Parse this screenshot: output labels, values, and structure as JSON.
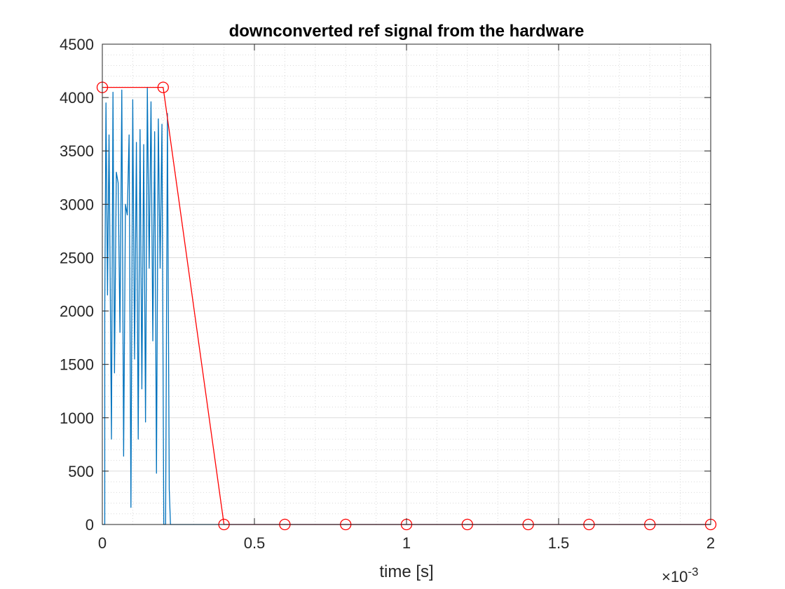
{
  "chart_data": {
    "type": "line",
    "title": "downconverted ref signal from the hardware",
    "xlabel": "time [s]",
    "ylabel": "",
    "xlim": [
      0,
      0.002
    ],
    "ylim": [
      0,
      4500
    ],
    "x_exponent_label": "×10",
    "x_exponent_power": "-3",
    "xticks": [
      0,
      0.0005,
      0.001,
      0.0015,
      0.002
    ],
    "xtick_labels": [
      "0",
      "0.5",
      "1",
      "1.5",
      "2"
    ],
    "yticks": [
      0,
      500,
      1000,
      1500,
      2000,
      2500,
      3000,
      3500,
      4000,
      4500
    ],
    "ytick_labels": [
      "0",
      "500",
      "1000",
      "1500",
      "2000",
      "2500",
      "3000",
      "3500",
      "4000",
      "4500"
    ],
    "grid": true,
    "minor_grid": true,
    "series": [
      {
        "color": "#0072BD",
        "style": "line",
        "x": [
          0,
          8e-06,
          8e-06,
          1.2e-05,
          1.7e-05,
          2.2e-05,
          3e-05,
          3.5e-05,
          4e-05,
          4.6e-05,
          5.2e-05,
          5.8e-05,
          6.4e-05,
          7e-05,
          7.6e-05,
          8.2e-05,
          8.8e-05,
          9.4e-05,
          0.0001,
          0.000106,
          0.000112,
          0.000118,
          0.000124,
          0.00013,
          0.000136,
          0.000142,
          0.000148,
          0.000154,
          0.00016,
          0.000166,
          0.000172,
          0.000178,
          0.000184,
          0.00019,
          0.000196,
          0.000202,
          0.000208,
          0.000214,
          0.00022,
          0.000224,
          0.000232,
          0.00024,
          0.002
        ],
        "y": [
          0,
          0,
          2000,
          3950,
          2150,
          3650,
          800,
          4050,
          1420,
          3300,
          3200,
          1800,
          4070,
          640,
          3000,
          2900,
          3650,
          160,
          3980,
          1550,
          3580,
          800,
          3700,
          1270,
          3560,
          960,
          4090,
          2400,
          3960,
          1720,
          3680,
          480,
          3800,
          2400,
          3750,
          0,
          0,
          3850,
          330,
          0,
          0,
          0,
          0
        ]
      },
      {
        "color": "#FF0000",
        "style": "line-marker",
        "marker": "circle",
        "x": [
          0,
          0.0002,
          0.0004,
          0.0006,
          0.0008,
          0.001,
          0.0012,
          0.0014,
          0.0016,
          0.0018,
          0.002
        ],
        "y": [
          4095,
          4095,
          0,
          0,
          0,
          0,
          0,
          0,
          0,
          0,
          0
        ]
      }
    ]
  }
}
